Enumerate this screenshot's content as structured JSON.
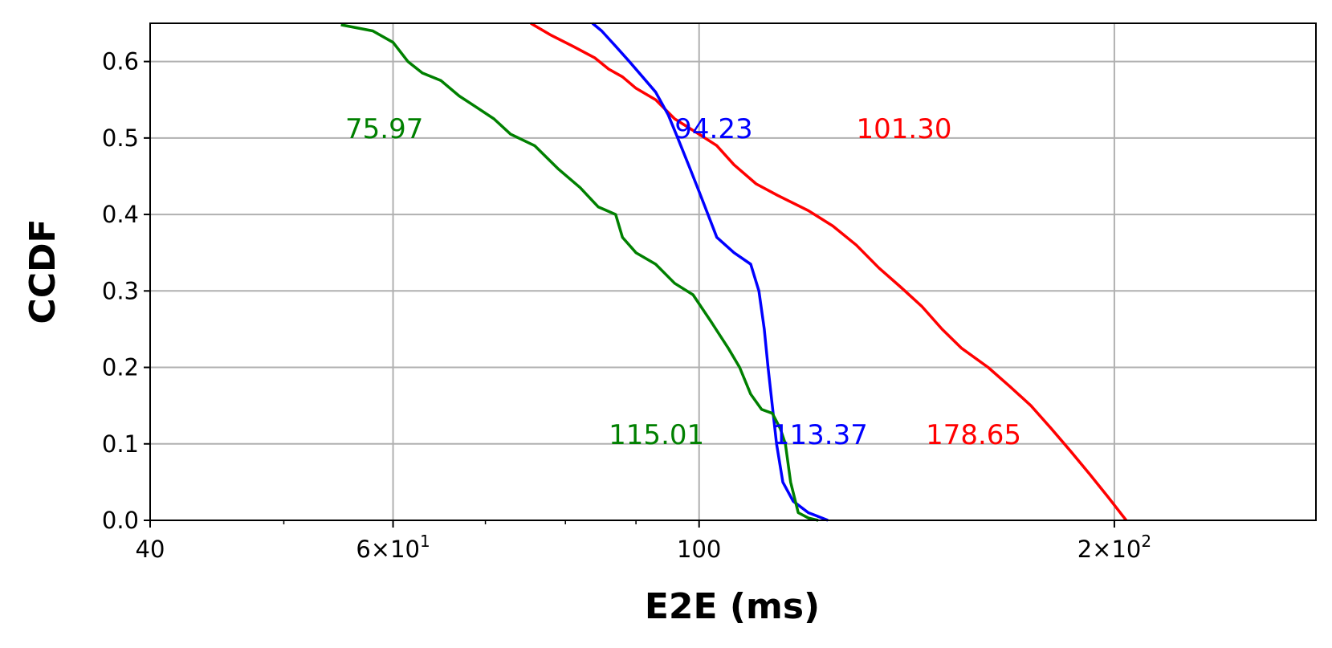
{
  "chart_data": {
    "type": "line",
    "xlabel": "E2E (ms)",
    "ylabel": "CCDF",
    "xscale": "log",
    "xlim": [
      40,
      280
    ],
    "ylim": [
      0,
      0.65
    ],
    "grid": true,
    "x_ticks": [
      {
        "value": 40,
        "label": "40"
      },
      {
        "value": 60,
        "label": "6×10^1"
      },
      {
        "value": 100,
        "label": "100"
      },
      {
        "value": 200,
        "label": "2×10^2"
      }
    ],
    "x_minor_ticks": [
      50,
      70,
      80,
      90
    ],
    "y_ticks": [
      {
        "value": 0.0,
        "label": "0.0"
      },
      {
        "value": 0.1,
        "label": "0.1"
      },
      {
        "value": 0.2,
        "label": "0.2"
      },
      {
        "value": 0.3,
        "label": "0.3"
      },
      {
        "value": 0.4,
        "label": "0.4"
      },
      {
        "value": 0.5,
        "label": "0.5"
      },
      {
        "value": 0.6,
        "label": "0.6"
      }
    ],
    "series": [
      {
        "color": "#ff0000",
        "points": [
          [
            75.5,
            0.65
          ],
          [
            78,
            0.635
          ],
          [
            81,
            0.62
          ],
          [
            84,
            0.605
          ],
          [
            86,
            0.59
          ],
          [
            88,
            0.58
          ],
          [
            90,
            0.565
          ],
          [
            93,
            0.55
          ],
          [
            96,
            0.525
          ],
          [
            100,
            0.505
          ],
          [
            103,
            0.49
          ],
          [
            106,
            0.465
          ],
          [
            110,
            0.44
          ],
          [
            114,
            0.425
          ],
          [
            120,
            0.405
          ],
          [
            125,
            0.385
          ],
          [
            130,
            0.36
          ],
          [
            135,
            0.33
          ],
          [
            140,
            0.305
          ],
          [
            145,
            0.28
          ],
          [
            150,
            0.25
          ],
          [
            155,
            0.225
          ],
          [
            162,
            0.2
          ],
          [
            168,
            0.175
          ],
          [
            174,
            0.15
          ],
          [
            180,
            0.12
          ],
          [
            186,
            0.09
          ],
          [
            192,
            0.06
          ],
          [
            198,
            0.03
          ],
          [
            204,
            0.0
          ]
        ]
      },
      {
        "color": "#0000ff",
        "points": [
          [
            83.7,
            0.65
          ],
          [
            85,
            0.64
          ],
          [
            87,
            0.62
          ],
          [
            89,
            0.6
          ],
          [
            91,
            0.58
          ],
          [
            93,
            0.56
          ],
          [
            95,
            0.53
          ],
          [
            96.5,
            0.5
          ],
          [
            98.5,
            0.46
          ],
          [
            100,
            0.43
          ],
          [
            101.5,
            0.4
          ],
          [
            103,
            0.37
          ],
          [
            106,
            0.35
          ],
          [
            109,
            0.335
          ],
          [
            110.5,
            0.3
          ],
          [
            111.5,
            0.25
          ],
          [
            112.2,
            0.2
          ],
          [
            113,
            0.15
          ],
          [
            113.8,
            0.1
          ],
          [
            115,
            0.05
          ],
          [
            117,
            0.025
          ],
          [
            120,
            0.01
          ],
          [
            122,
            0.005
          ],
          [
            124,
            0.0
          ]
        ]
      },
      {
        "color": "#008000",
        "points": [
          [
            55,
            0.648
          ],
          [
            58,
            0.64
          ],
          [
            60,
            0.625
          ],
          [
            61.5,
            0.6
          ],
          [
            63,
            0.585
          ],
          [
            65,
            0.575
          ],
          [
            67,
            0.555
          ],
          [
            69,
            0.54
          ],
          [
            71,
            0.525
          ],
          [
            73,
            0.505
          ],
          [
            76,
            0.49
          ],
          [
            79,
            0.46
          ],
          [
            82,
            0.435
          ],
          [
            84.5,
            0.41
          ],
          [
            87,
            0.4
          ],
          [
            88,
            0.37
          ],
          [
            90,
            0.35
          ],
          [
            93,
            0.335
          ],
          [
            96,
            0.31
          ],
          [
            99,
            0.295
          ],
          [
            102,
            0.26
          ],
          [
            105,
            0.225
          ],
          [
            107,
            0.2
          ],
          [
            109,
            0.165
          ],
          [
            111,
            0.145
          ],
          [
            113,
            0.14
          ],
          [
            114.5,
            0.12
          ],
          [
            115.5,
            0.1
          ],
          [
            116.5,
            0.05
          ],
          [
            118,
            0.01
          ],
          [
            120,
            0.003
          ],
          [
            122,
            0.0
          ]
        ]
      }
    ],
    "annotations": [
      {
        "text": "75.97",
        "color": "#008000",
        "x": 55.4,
        "y": 0.5
      },
      {
        "text": "94.23",
        "color": "#0000ff",
        "x": 96,
        "y": 0.5
      },
      {
        "text": "101.30",
        "color": "#ff0000",
        "x": 130,
        "y": 0.5
      },
      {
        "text": "115.01",
        "color": "#008000",
        "x": 86,
        "y": 0.1
      },
      {
        "text": "113.37",
        "color": "#0000ff",
        "x": 113,
        "y": 0.1
      },
      {
        "text": "178.65",
        "color": "#ff0000",
        "x": 146,
        "y": 0.1
      }
    ]
  }
}
